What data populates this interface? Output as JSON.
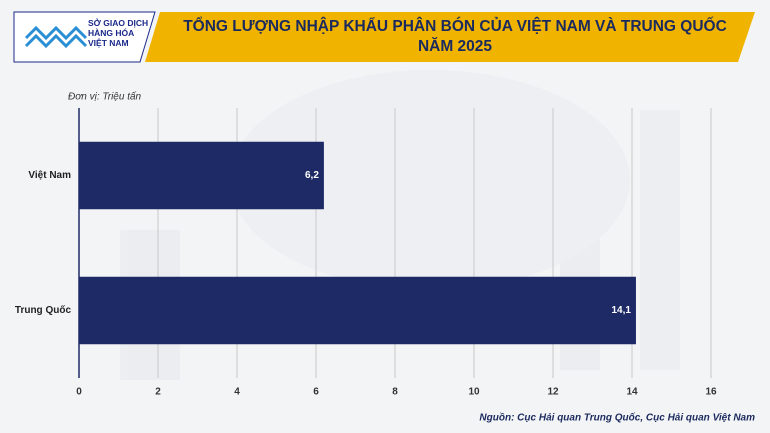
{
  "logo": {
    "lines": [
      "SỞ GIAO DỊCH",
      "HÀNG HÓA",
      "VIỆT NAM"
    ]
  },
  "chart_data": {
    "type": "hbar",
    "title": "TỔNG LƯỢNG NHẬP KHẨU PHÂN BÓN CỦA VIỆT NAM VÀ TRUNG QUỐC NĂM 2025",
    "unit_label": "Đơn vị: Triệu tấn",
    "source": "Nguồn: Cục Hải quan Trung Quốc, Cục Hải quan Việt Nam",
    "categories": [
      "Việt Nam",
      "Trung Quốc"
    ],
    "values": [
      6.2,
      14.1
    ],
    "value_labels": [
      "6,2",
      "14,1"
    ],
    "color": "#1e2a66",
    "xlim": [
      0,
      16
    ],
    "xticks": [
      0,
      2,
      4,
      6,
      8,
      10,
      12,
      14,
      16
    ],
    "grid": true
  }
}
